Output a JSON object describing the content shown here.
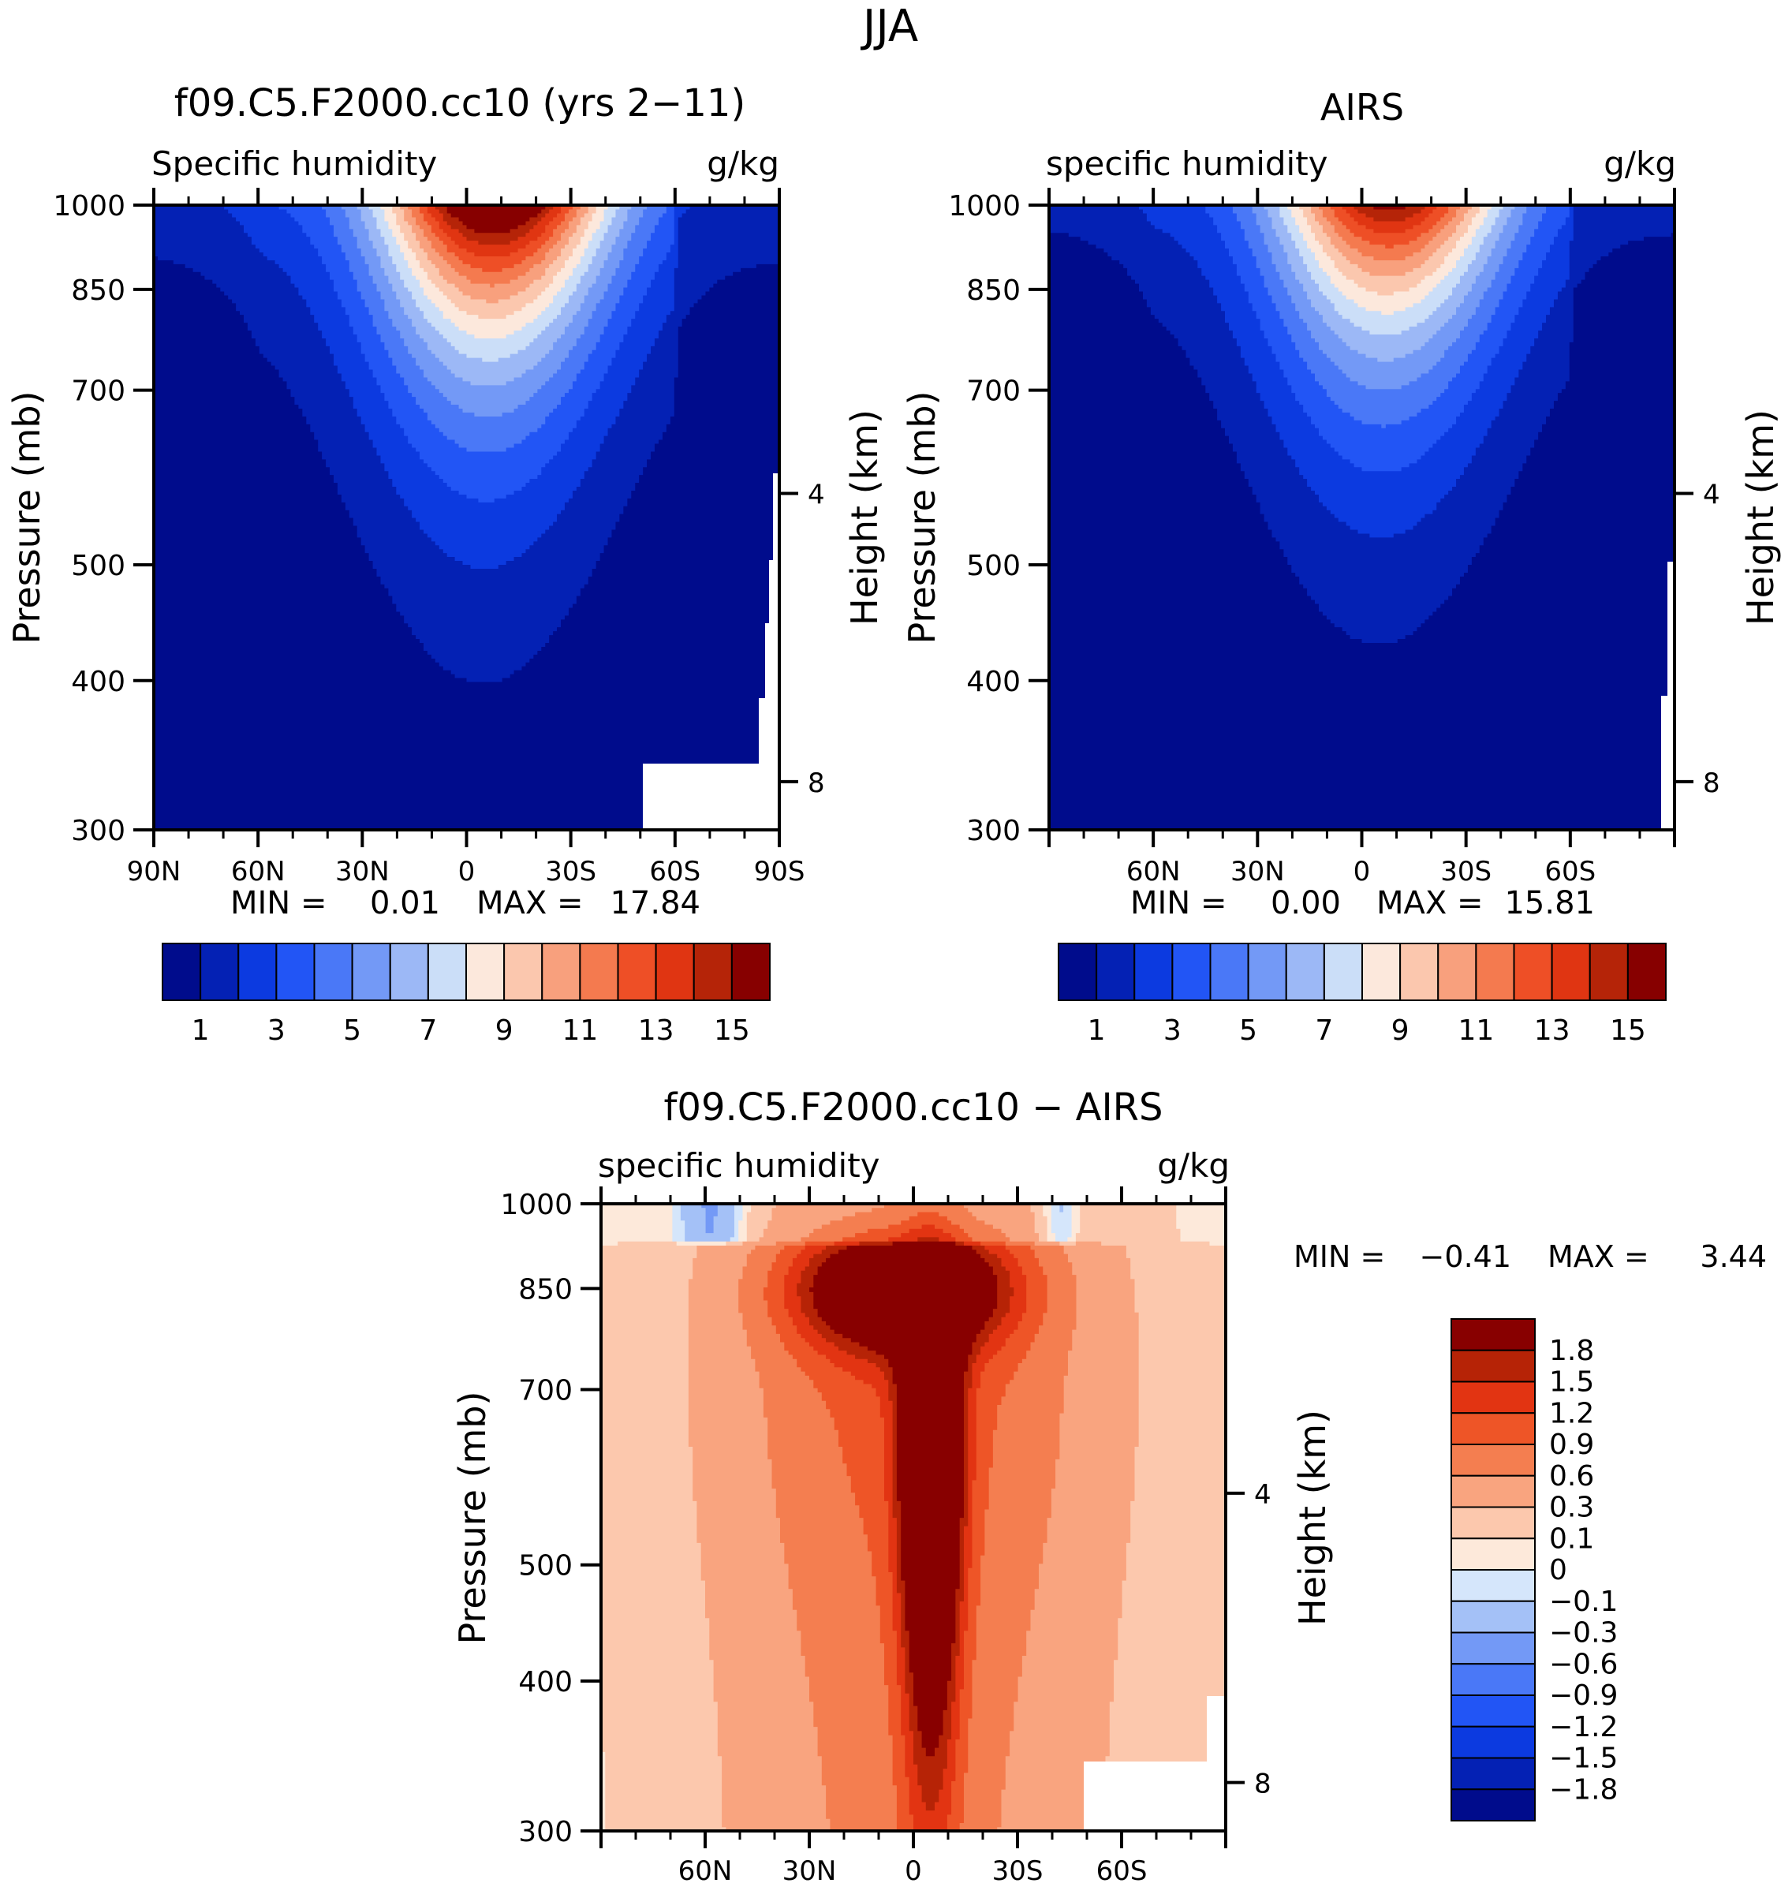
{
  "figure_title": "JJA",
  "palettes": {
    "abs": [
      "#000c8c",
      "#0421b4",
      "#0c3ae0",
      "#2255f5",
      "#4a78f7",
      "#7399f6",
      "#9cb8f6",
      "#cbdef8",
      "#fce8dc",
      "#fbc7ae",
      "#f8a07d",
      "#f47a4f",
      "#ee4f26",
      "#e03512",
      "#b52408",
      "#870000"
    ],
    "diff": [
      "#000c8c",
      "#0421b4",
      "#0c3ae0",
      "#2255f5",
      "#4a78f7",
      "#7399f6",
      "#a4c1f7",
      "#d5e6fb",
      "#fde9da",
      "#fcc8ad",
      "#f9a47f",
      "#f47e50",
      "#ee5527",
      "#e23412",
      "#b62306",
      "#880000"
    ]
  },
  "chart_data": [
    {
      "type": "contour",
      "title": "f09.C5.F2000.cc10 (yrs 2−11)",
      "left_label": "Specific humidity",
      "units": "g/kg",
      "ylabel": "Pressure (mb)",
      "ylabel_right": "Height (km)",
      "y_ticks": [
        "300",
        "400",
        "500",
        "700",
        "850",
        "1000"
      ],
      "x_ticks": [
        "90N",
        "60N",
        "30N",
        "0",
        "30S",
        "60S",
        "90S"
      ],
      "height_ticks": [
        "8",
        "4"
      ],
      "min_label": "MIN =",
      "min_value": "0.01",
      "max_label": "MAX =",
      "max_value": "17.84",
      "levels": [
        1,
        2,
        3,
        4,
        5,
        6,
        7,
        8,
        9,
        10,
        11,
        12,
        13,
        14,
        15
      ],
      "colorbar_labels": [
        "1",
        "3",
        "5",
        "7",
        "9",
        "11",
        "13",
        "15"
      ],
      "peak_value": 17.84,
      "peak_lat": -8,
      "surface_height_km": 0.0
    },
    {
      "type": "contour",
      "title": "AIRS",
      "left_label": "specific humidity",
      "units": "g/kg",
      "ylabel": "Pressure (mb)",
      "ylabel_right": "Height (km)",
      "y_ticks": [
        "300",
        "400",
        "500",
        "700",
        "850",
        "1000"
      ],
      "x_ticks": [
        "60N",
        "30N",
        "0",
        "30S",
        "60S"
      ],
      "height_ticks": [
        "8",
        "4"
      ],
      "min_label": "MIN =",
      "min_value": "0.00",
      "max_label": "MAX =",
      "max_value": "15.81",
      "levels": [
        1,
        2,
        3,
        4,
        5,
        6,
        7,
        8,
        9,
        10,
        11,
        12,
        13,
        14,
        15
      ],
      "colorbar_labels": [
        "1",
        "3",
        "5",
        "7",
        "9",
        "11",
        "13",
        "15"
      ],
      "peak_value": 15.81,
      "peak_lat": -8
    },
    {
      "type": "contour",
      "title": "f09.C5.F2000.cc10 − AIRS",
      "left_label": "specific humidity",
      "units": "g/kg",
      "ylabel": "Pressure (mb)",
      "ylabel_right": "Height (km)",
      "y_ticks": [
        "300",
        "400",
        "500",
        "700",
        "850",
        "1000"
      ],
      "x_ticks": [
        "60N",
        "30N",
        "0",
        "30S",
        "60S"
      ],
      "height_ticks": [
        "8",
        "4"
      ],
      "min_label": "MIN =",
      "min_value": "−0.41",
      "max_label": "MAX =",
      "max_value": "3.44",
      "levels": [
        -1.8,
        -1.5,
        -1.2,
        -0.9,
        -0.6,
        -0.3,
        -0.1,
        0,
        0.1,
        0.3,
        0.6,
        0.9,
        1.2,
        1.5,
        1.8
      ],
      "colorbar_labels": [
        "1.8",
        "1.5",
        "1.2",
        "0.9",
        "0.6",
        "0.3",
        "0.1",
        "0",
        "−0.1",
        "−0.3",
        "−0.6",
        "−0.9",
        "−1.2",
        "−1.5",
        "−1.8"
      ]
    }
  ]
}
